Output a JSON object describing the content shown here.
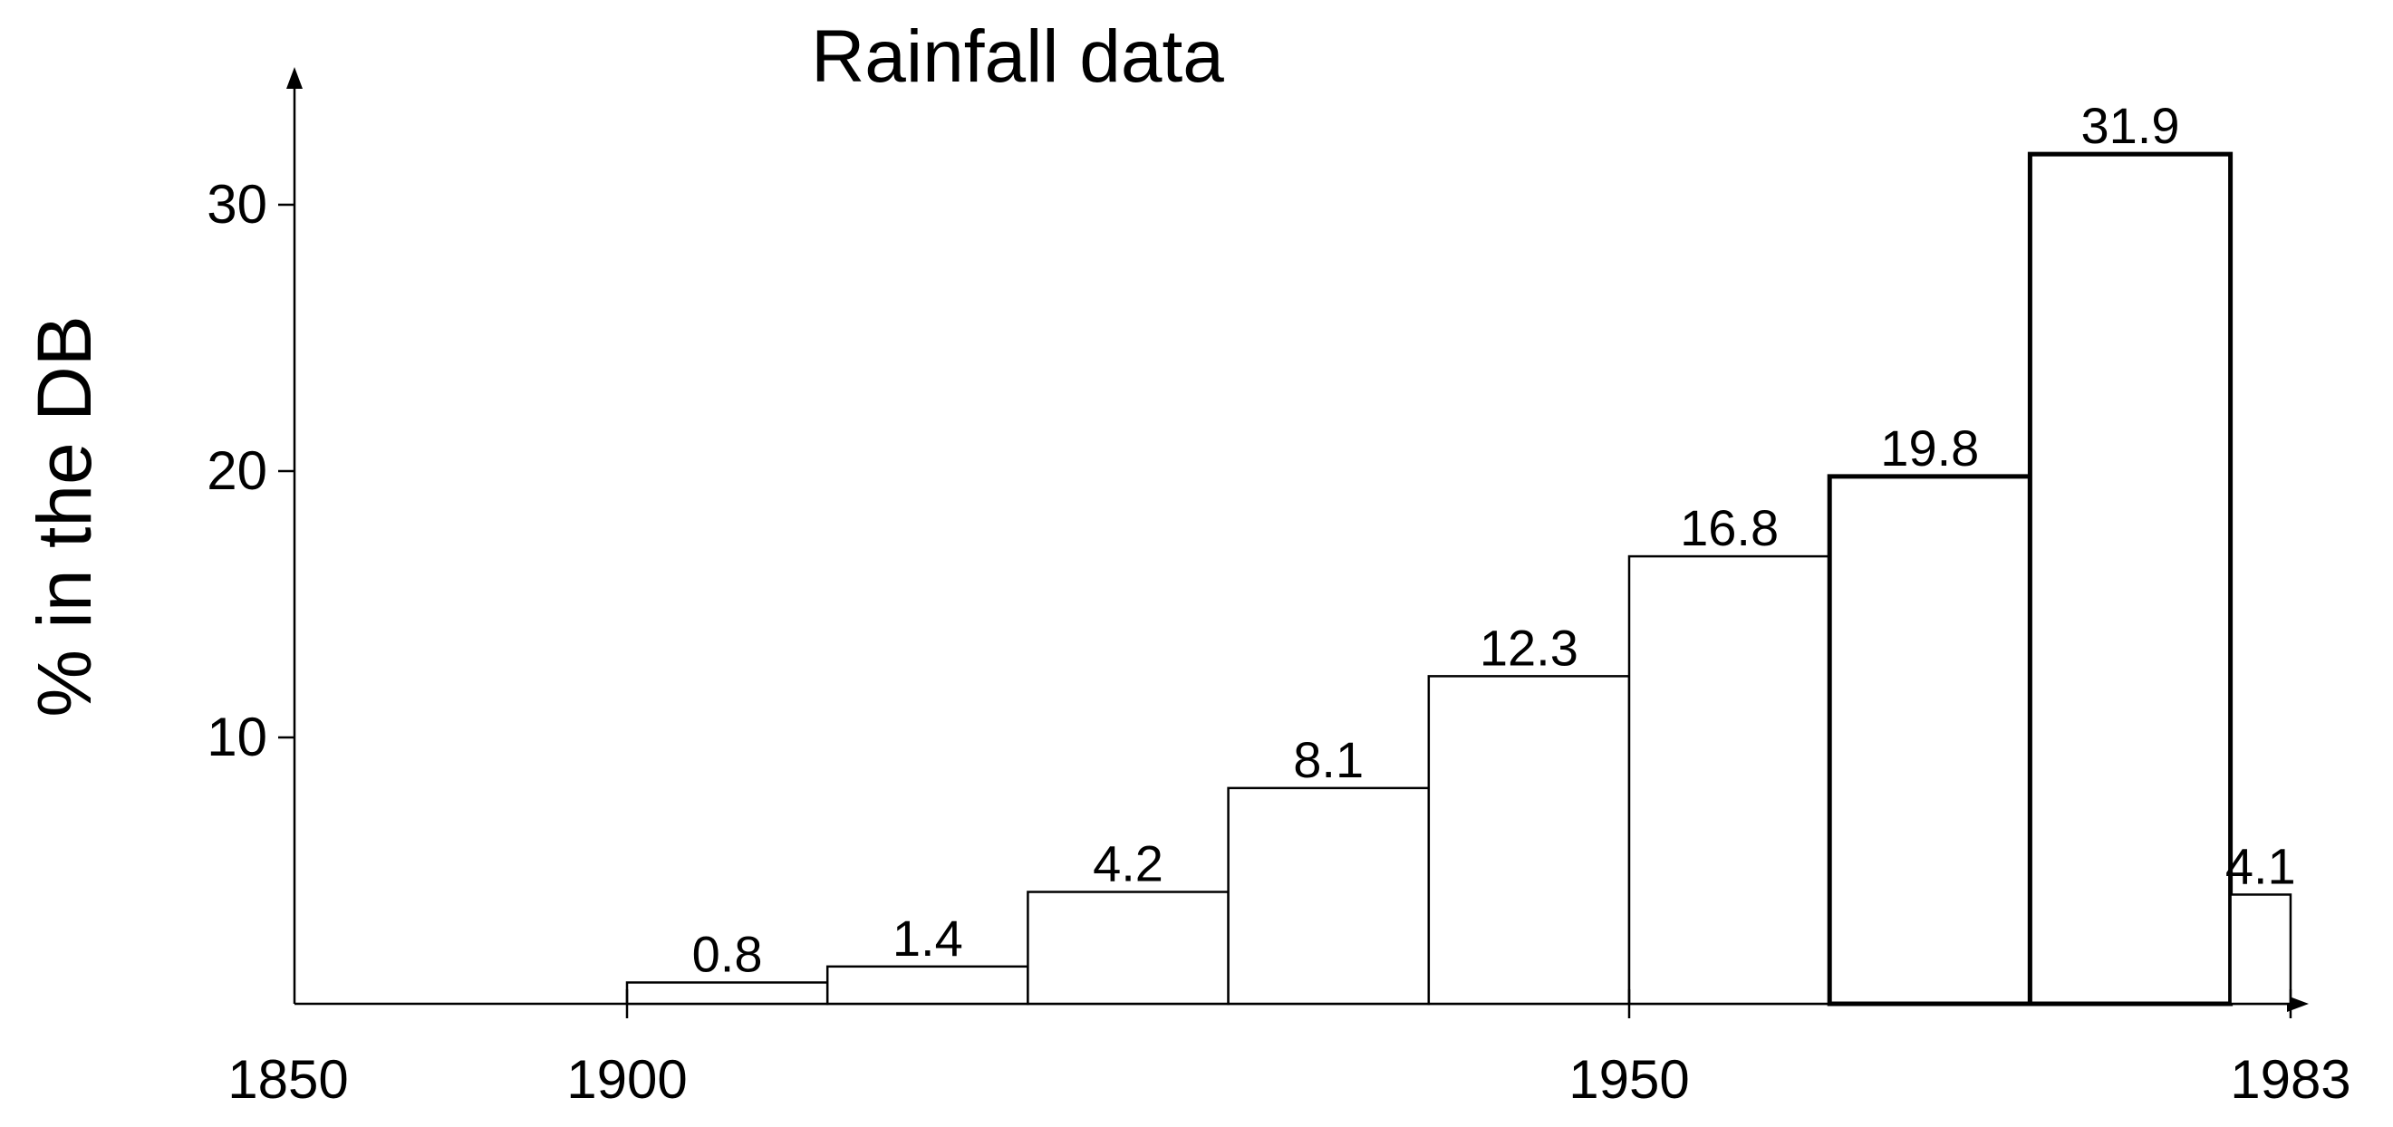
{
  "chart_data": {
    "type": "bar",
    "title": "Rainfall data",
    "ylabel": "% in the DB",
    "xlabel": "",
    "x_ticks": [
      1850,
      1900,
      1950,
      1983
    ],
    "y_ticks": [
      10,
      20,
      30
    ],
    "xlim": [
      1850,
      1983
    ],
    "ylim": [
      0,
      35
    ],
    "grid": false,
    "legend": "none",
    "bins": [
      {
        "start": 1900,
        "end": 1910,
        "value": 0.8,
        "label": "0.8"
      },
      {
        "start": 1910,
        "end": 1920,
        "value": 1.4,
        "label": "1.4"
      },
      {
        "start": 1920,
        "end": 1930,
        "value": 4.2,
        "label": "4.2"
      },
      {
        "start": 1930,
        "end": 1940,
        "value": 8.1,
        "label": "8.1"
      },
      {
        "start": 1940,
        "end": 1950,
        "value": 12.3,
        "label": "12.3"
      },
      {
        "start": 1950,
        "end": 1960,
        "value": 16.8,
        "label": "16.8"
      },
      {
        "start": 1960,
        "end": 1970,
        "value": 19.8,
        "label": "19.8"
      },
      {
        "start": 1970,
        "end": 1980,
        "value": 31.9,
        "label": "31.9"
      },
      {
        "start": 1980,
        "end": 1983,
        "value": 4.1,
        "label": "4.1"
      }
    ]
  }
}
